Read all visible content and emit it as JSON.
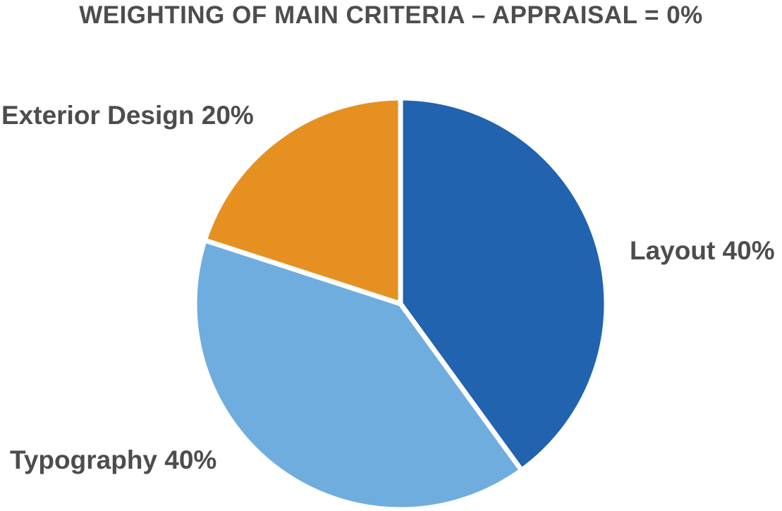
{
  "chart_data": {
    "type": "pie",
    "title": "WEIGHTING OF MAIN CRITERIA – APPRAISAL = 0%",
    "slices": [
      {
        "label": "Layout",
        "value": 40,
        "display": "Layout 40%",
        "color": "#2163ae"
      },
      {
        "label": "Typography",
        "value": 40,
        "display": "Typography 40%",
        "color": "#70addf"
      },
      {
        "label": "Exterior Design",
        "value": 20,
        "display": "Exterior Design 20%",
        "color": "#e69022"
      }
    ],
    "legend": "none"
  }
}
